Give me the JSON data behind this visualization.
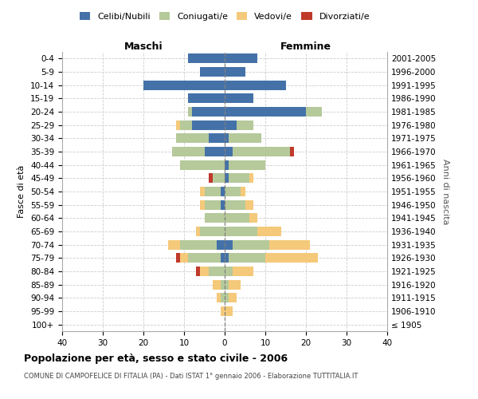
{
  "age_groups": [
    "100+",
    "95-99",
    "90-94",
    "85-89",
    "80-84",
    "75-79",
    "70-74",
    "65-69",
    "60-64",
    "55-59",
    "50-54",
    "45-49",
    "40-44",
    "35-39",
    "30-34",
    "25-29",
    "20-24",
    "15-19",
    "10-14",
    "5-9",
    "0-4"
  ],
  "birth_years": [
    "≤ 1905",
    "1906-1910",
    "1911-1915",
    "1916-1920",
    "1921-1925",
    "1926-1930",
    "1931-1935",
    "1936-1940",
    "1941-1945",
    "1946-1950",
    "1951-1955",
    "1956-1960",
    "1961-1965",
    "1966-1970",
    "1971-1975",
    "1976-1980",
    "1981-1985",
    "1986-1990",
    "1991-1995",
    "1996-2000",
    "2001-2005"
  ],
  "male": {
    "celibi": [
      0,
      0,
      0,
      0,
      0,
      1,
      2,
      0,
      0,
      1,
      1,
      0,
      0,
      5,
      4,
      8,
      8,
      9,
      20,
      6,
      9
    ],
    "coniugati": [
      0,
      0,
      1,
      1,
      4,
      8,
      9,
      6,
      5,
      4,
      4,
      3,
      11,
      8,
      8,
      3,
      1,
      0,
      0,
      0,
      0
    ],
    "vedovi": [
      0,
      1,
      1,
      2,
      2,
      2,
      3,
      1,
      0,
      1,
      1,
      0,
      0,
      0,
      0,
      1,
      0,
      0,
      0,
      0,
      0
    ],
    "divorziati": [
      0,
      0,
      0,
      0,
      1,
      1,
      0,
      0,
      0,
      0,
      0,
      1,
      0,
      0,
      0,
      0,
      0,
      0,
      0,
      0,
      0
    ]
  },
  "female": {
    "nubili": [
      0,
      0,
      0,
      0,
      0,
      1,
      2,
      0,
      0,
      0,
      0,
      1,
      1,
      2,
      1,
      3,
      20,
      7,
      15,
      5,
      8
    ],
    "coniugate": [
      0,
      0,
      1,
      1,
      2,
      9,
      9,
      8,
      6,
      5,
      4,
      5,
      9,
      14,
      8,
      4,
      4,
      0,
      0,
      0,
      0
    ],
    "vedove": [
      0,
      2,
      2,
      3,
      5,
      13,
      10,
      6,
      2,
      2,
      1,
      1,
      0,
      0,
      0,
      0,
      0,
      0,
      0,
      0,
      0
    ],
    "divorziate": [
      0,
      0,
      0,
      0,
      0,
      0,
      0,
      0,
      0,
      0,
      0,
      0,
      0,
      1,
      0,
      0,
      0,
      0,
      0,
      0,
      0
    ]
  },
  "colors": {
    "celibi": "#4472a8",
    "coniugati": "#b5c99a",
    "vedovi": "#f5c97a",
    "divorziati": "#c0392b"
  },
  "title": "Popolazione per età, sesso e stato civile - 2006",
  "subtitle": "COMUNE DI CAMPOFELICE DI FITALIA (PA) - Dati ISTAT 1° gennaio 2006 - Elaborazione TUTTITALIA.IT",
  "xlabel_left": "Maschi",
  "xlabel_right": "Femmine",
  "ylabel_left": "Fasce di età",
  "ylabel_right": "Anni di nascita",
  "xlim": 40,
  "background_color": "#ffffff",
  "grid_color": "#cccccc",
  "legend_labels": [
    "Celibi/Nubili",
    "Coniugati/e",
    "Vedovi/e",
    "Divorziati/e"
  ]
}
